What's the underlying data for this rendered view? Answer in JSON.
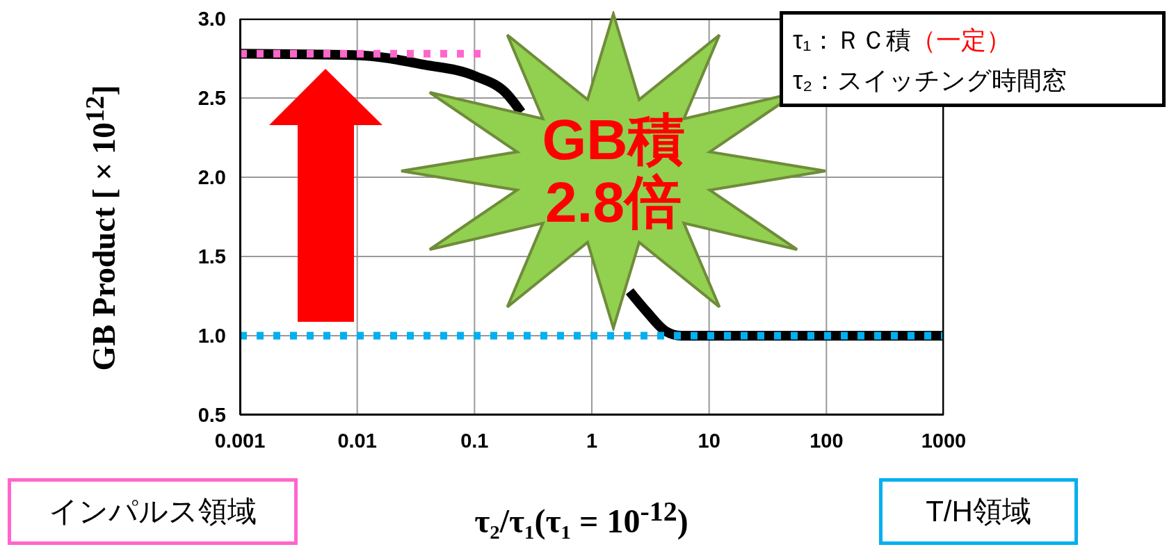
{
  "chart_data": {
    "type": "line",
    "xlabel": "τ₂/τ₁(τ₁ = 10$^{-12}$)",
    "ylabel": "GB Product [ × 10$^{12}$]",
    "log": "x",
    "grid": true,
    "xlim": [
      0.001,
      1000
    ],
    "xticks": [
      0.001,
      0.01,
      0.1,
      1,
      10,
      100,
      1000
    ],
    "ylim": [
      0.5,
      3.0
    ],
    "yticks": [
      {
        "value": 0.5,
        "label": "0.5"
      },
      {
        "value": 1,
        "label": "1.0"
      },
      {
        "value": 1.5,
        "label": "1.5"
      },
      {
        "value": 2,
        "label": "2.0"
      },
      {
        "value": 2.5,
        "label": "2.5"
      },
      {
        "value": 3,
        "label": "3.0"
      }
    ],
    "series": [
      {
        "color": "#000000",
        "line_style": "solid",
        "x": [
          0.001,
          0.01,
          0.0374,
          0.1,
          0.192,
          0.25,
          0.7,
          2.1,
          2.95,
          4.24,
          5.8,
          1000
        ],
        "values": [
          2.78,
          2.77,
          2.71,
          2.64,
          2.52,
          2.41,
          null,
          1.28,
          1.15,
          1.03,
          1.0,
          1.0
        ]
      },
      {
        "color": "#ff66cc",
        "line_style": "dotted",
        "x": [
          0.001,
          0.117
        ],
        "values": [
          2.78,
          2.78
        ]
      },
      {
        "color": "#00b0f0",
        "line_style": "dotted",
        "x": [
          0.001,
          1000
        ],
        "values": [
          1.0,
          1.0
        ]
      }
    ],
    "annotations": [
      "τ₁：ＲＣ積",
      "（一定）",
      "τ₂：スイッチング時間窓",
      "GB積",
      "2.8倍",
      "インパルス領域",
      "T/H領域"
    ]
  }
}
